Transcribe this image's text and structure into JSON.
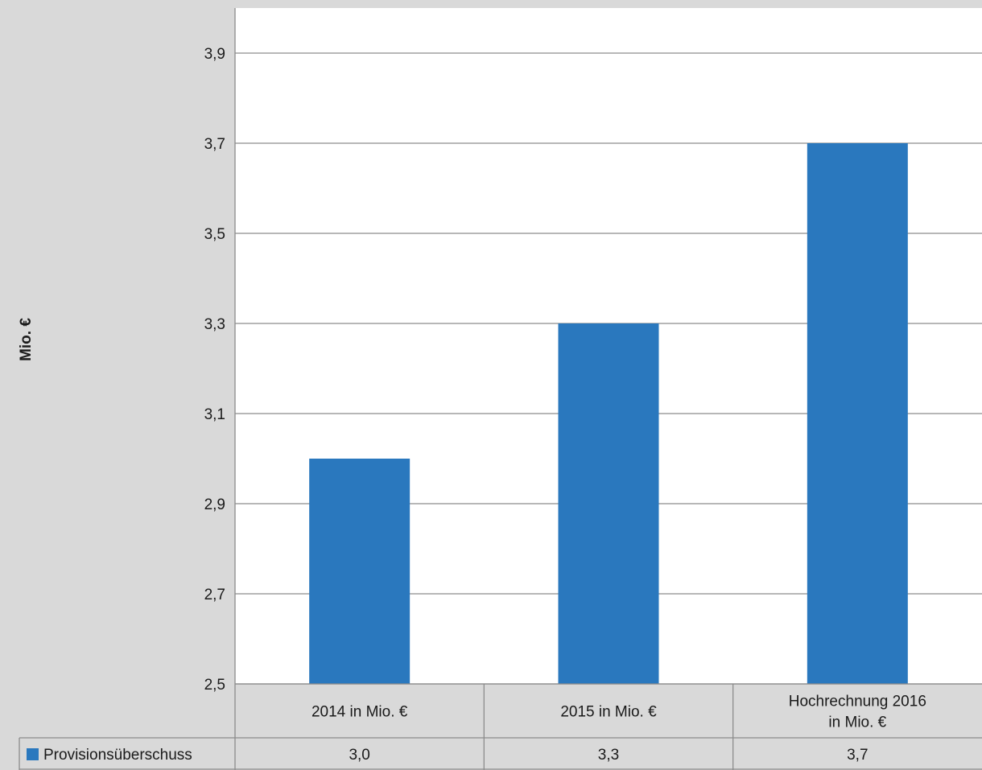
{
  "chart_data": {
    "type": "bar",
    "ylabel": "Mio. €",
    "ylim": [
      2.5,
      4.0
    ],
    "yticks": [
      "2,5",
      "2,7",
      "2,9",
      "3,1",
      "3,3",
      "3,5",
      "3,7",
      "3,9"
    ],
    "ytick_values": [
      2.5,
      2.7,
      2.9,
      3.1,
      3.3,
      3.5,
      3.7,
      3.9
    ],
    "categories": [
      [
        "2014 in Mio. €"
      ],
      [
        "2015 in Mio. €"
      ],
      [
        "Hochrechnung 2016",
        "in Mio. €"
      ]
    ],
    "series": [
      {
        "name": "Provisionsüberschuss",
        "values": [
          3.0,
          3.3,
          3.7
        ],
        "value_labels": [
          "3,0",
          "3,3",
          "3,7"
        ],
        "color": "#2a78be"
      }
    ],
    "grid": true,
    "legend": "data-table-left"
  }
}
